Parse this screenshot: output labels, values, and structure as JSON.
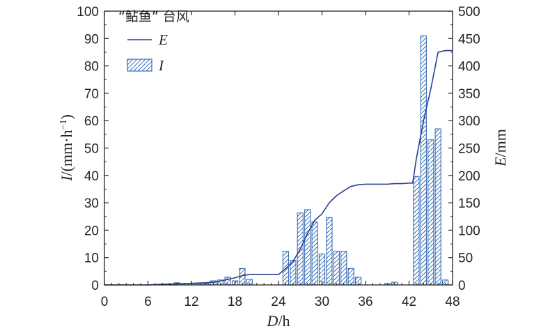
{
  "chart_data": {
    "type": "bar",
    "title": "“鲇鱼” 台风",
    "xlabel_italic": "D",
    "xlabel_rest": "/h",
    "ylabel_left_italic": "I",
    "ylabel_left_rest": "/(mm·h",
    "ylabel_left_sup": "−1",
    "ylabel_left_close": ")",
    "ylabel_right_italic": "E",
    "ylabel_right_rest": "/mm",
    "xlim": [
      0,
      48
    ],
    "ylim_left": [
      0,
      100
    ],
    "ylim_right": [
      0,
      500
    ],
    "xticks": [
      0,
      6,
      12,
      18,
      24,
      30,
      36,
      42,
      48
    ],
    "xticks_labels": [
      "0",
      "6",
      "12",
      "18",
      "24",
      "30",
      "36",
      "42",
      "48"
    ],
    "yticks_left": [
      0,
      10,
      20,
      30,
      40,
      50,
      60,
      70,
      80,
      90,
      100
    ],
    "yticks_left_labels": [
      "0",
      "10",
      "20",
      "30",
      "40",
      "50",
      "60",
      "70",
      "80",
      "90",
      "100"
    ],
    "yticks_right": [
      0,
      50,
      100,
      150,
      200,
      250,
      300,
      350,
      400,
      450,
      500
    ],
    "yticks_right_labels": [
      "0",
      "50",
      "100",
      "150",
      "200",
      "250",
      "300",
      "350",
      "400",
      "450",
      "500"
    ],
    "legend_position": "top-left",
    "colors": {
      "bar_edge": "#3a6fb5",
      "line": "#2b3d8f",
      "axis": "#222222"
    },
    "series": [
      {
        "name": "I",
        "type": "bar",
        "axis": "left",
        "x": [
          8,
          9,
          10,
          11,
          12,
          13,
          14,
          15,
          16,
          17,
          18,
          19,
          20,
          25,
          26,
          27,
          28,
          29,
          30,
          31,
          32,
          33,
          34,
          35,
          39,
          40,
          43,
          44,
          45,
          46,
          47
        ],
        "values": [
          0.3,
          0.3,
          0.8,
          0.5,
          0.5,
          0.5,
          0.5,
          1.5,
          1.8,
          2.8,
          1.5,
          6,
          2,
          12.3,
          9,
          26.3,
          27.5,
          23,
          11.3,
          24.6,
          12.3,
          12.3,
          6,
          2.8,
          0.5,
          1,
          39.6,
          91,
          53,
          57,
          1.8
        ]
      },
      {
        "name": "E",
        "type": "line",
        "axis": "right",
        "x": [
          0,
          6,
          8,
          10,
          12,
          14,
          15,
          16,
          17,
          18,
          19,
          20,
          21,
          22,
          23,
          24,
          25,
          26,
          27,
          28,
          29,
          30,
          31,
          32,
          33,
          34,
          35,
          36,
          37,
          38,
          39,
          40,
          41,
          42,
          42.5,
          43,
          44,
          45,
          46,
          47,
          48
        ],
        "values": [
          0,
          0,
          1,
          2,
          3,
          4,
          5,
          7,
          10,
          13,
          17,
          19,
          19,
          19,
          19,
          19,
          30,
          43,
          65,
          94,
          118,
          130,
          150,
          163,
          172,
          180,
          183,
          184,
          184,
          184,
          184,
          185,
          185,
          186,
          186,
          230,
          300,
          358,
          425,
          428,
          428
        ]
      }
    ]
  }
}
